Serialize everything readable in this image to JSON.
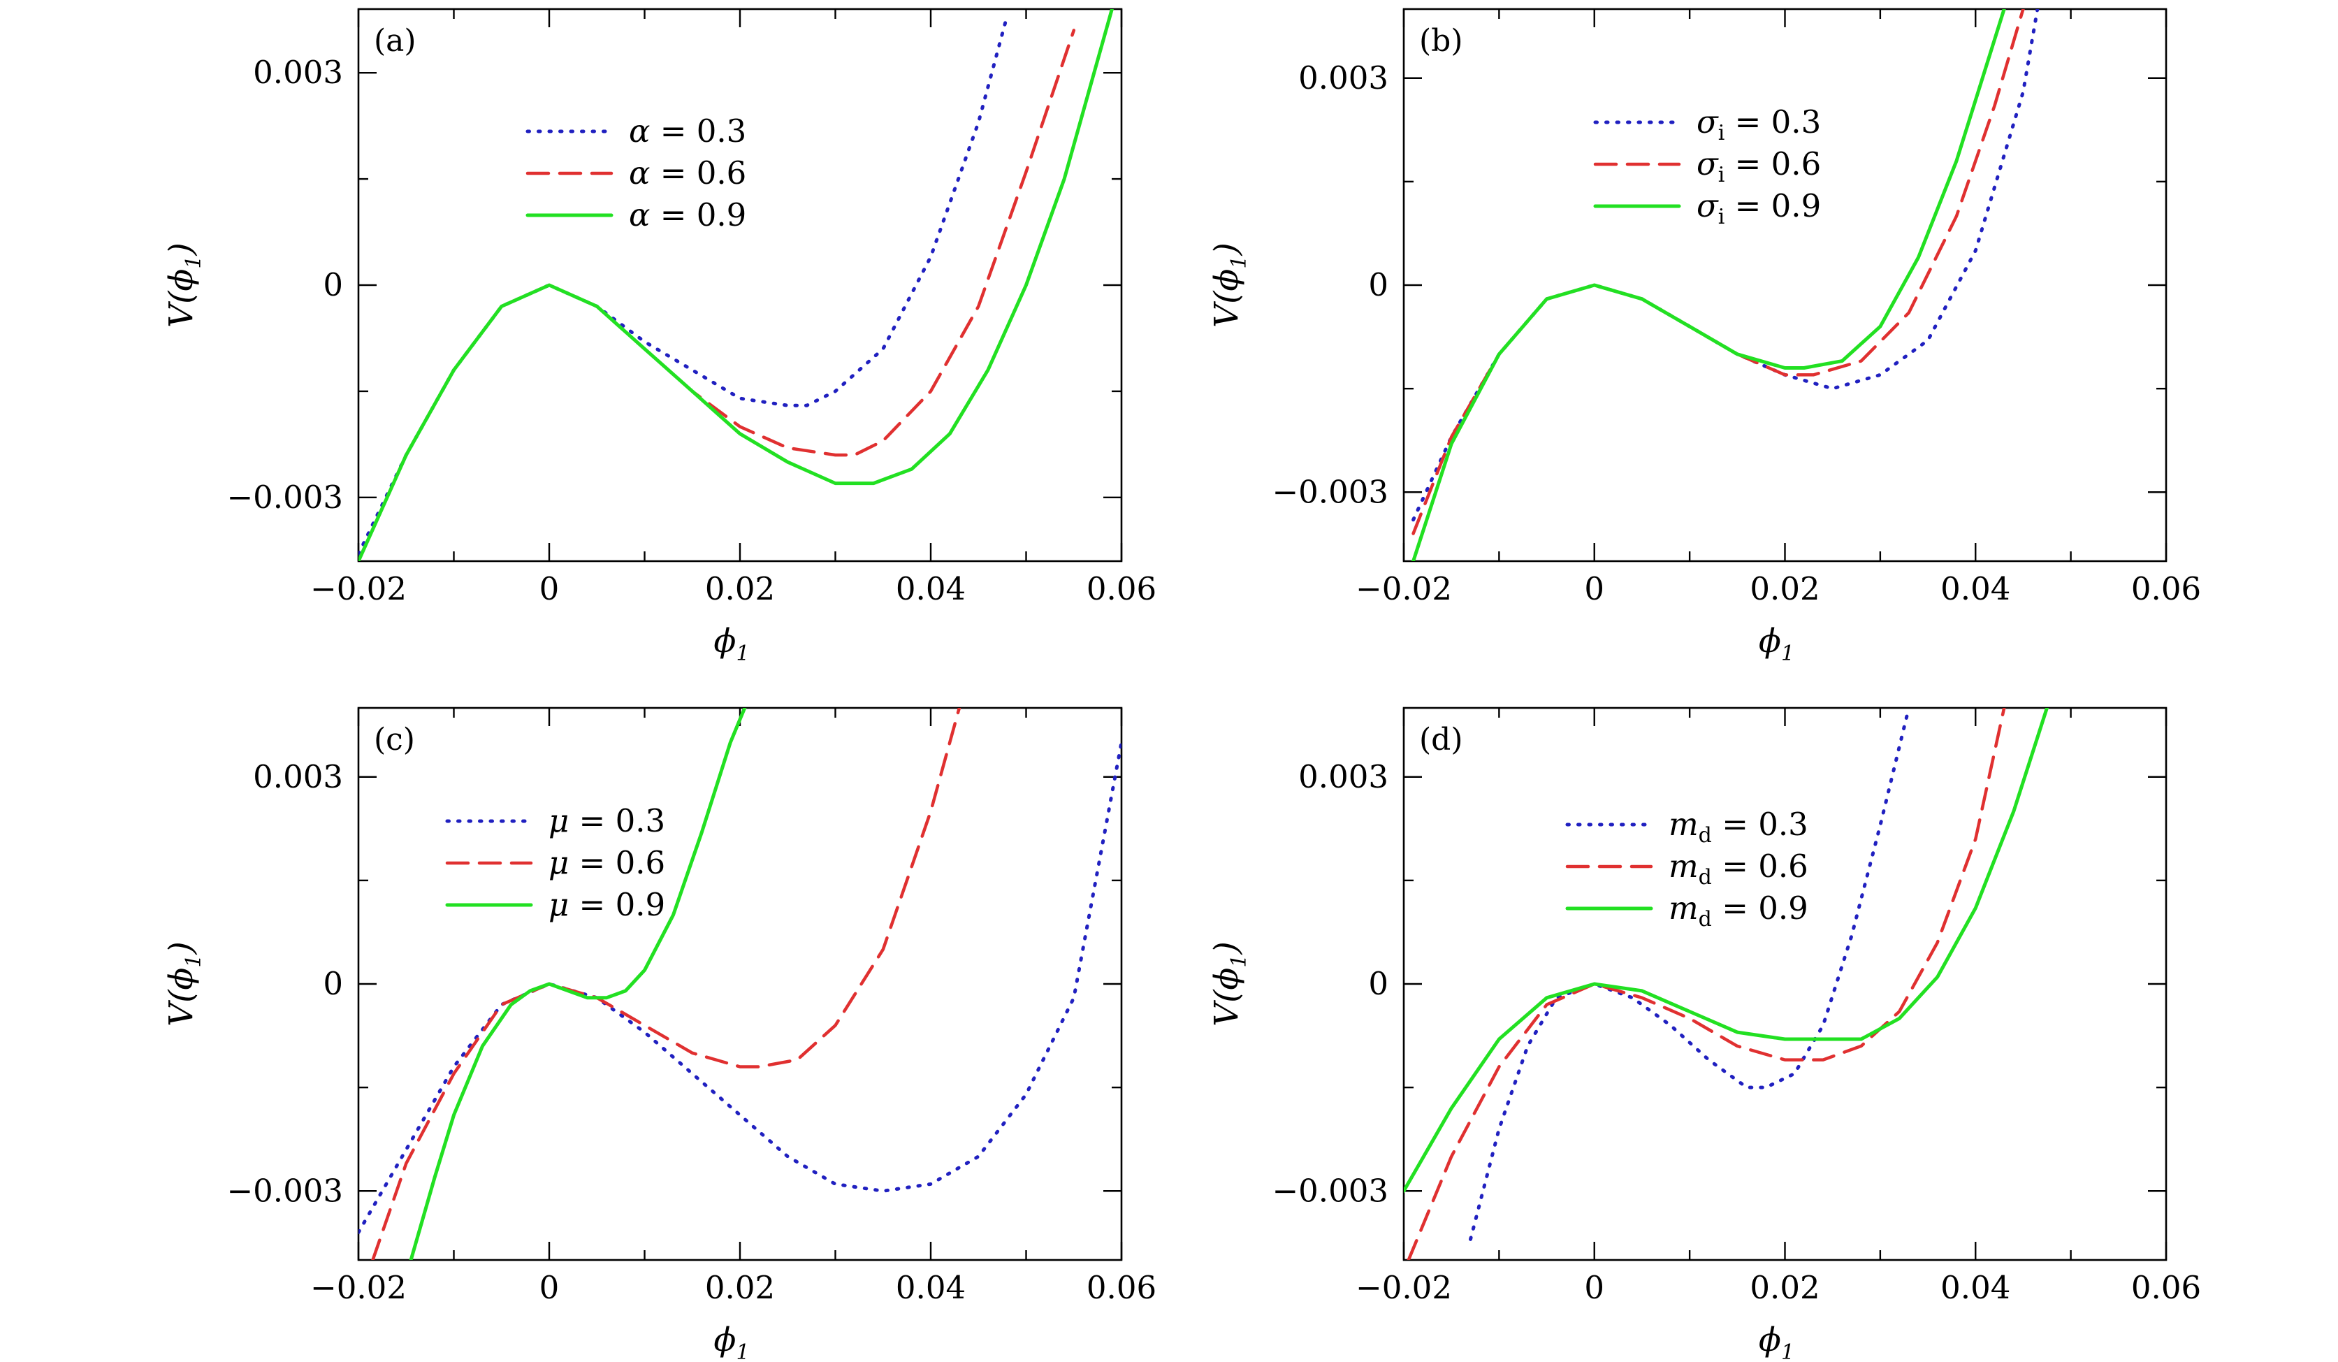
{
  "styles": {
    "dotted": {
      "color": "#2020c0"
    },
    "dashed": {
      "color": "#e03030"
    },
    "solid": {
      "color": "#22e022"
    }
  },
  "chart_data": [
    {
      "type": "line",
      "panel_label": "(a)",
      "xlabel": {
        "main": "ϕ",
        "sub": "1"
      },
      "ylabel": {
        "main": "V(ϕ",
        "sub": "1",
        "close": ")"
      },
      "xlim": [
        -0.02,
        0.06
      ],
      "ylim": [
        -0.0039,
        0.0039
      ],
      "xticks": [
        -0.02,
        0,
        0.02,
        0.04,
        0.06
      ],
      "xtick_labels": [
        "−0.02",
        "0",
        "0.02",
        "0.04",
        "0.06"
      ],
      "yticks": [
        -0.003,
        0,
        0.003
      ],
      "ytick_labels": [
        "−0.003",
        "0",
        "0.003"
      ],
      "legend_position": "upper-left",
      "series": [
        {
          "param": "α",
          "param_sub": "",
          "value_text": " = 0.3",
          "style": "dotted",
          "x": [
            -0.02,
            -0.015,
            -0.01,
            -0.005,
            0,
            0.005,
            0.01,
            0.015,
            0.02,
            0.025,
            0.027,
            0.03,
            0.035,
            0.04,
            0.045,
            0.048
          ],
          "y": [
            -0.0038,
            -0.0024,
            -0.0012,
            -0.0003,
            0,
            -0.0003,
            -0.0008,
            -0.0012,
            -0.0016,
            -0.0017,
            -0.0017,
            -0.0015,
            -0.0009,
            0.0004,
            0.0023,
            0.0038
          ]
        },
        {
          "param": "α",
          "param_sub": "",
          "value_text": " = 0.6",
          "style": "dashed",
          "x": [
            -0.02,
            -0.015,
            -0.01,
            -0.005,
            0,
            0.005,
            0.01,
            0.015,
            0.02,
            0.025,
            0.03,
            0.032,
            0.035,
            0.04,
            0.045,
            0.05,
            0.055
          ],
          "y": [
            -0.0039,
            -0.0024,
            -0.0012,
            -0.0003,
            0,
            -0.0003,
            -0.0009,
            -0.0015,
            -0.002,
            -0.0023,
            -0.0024,
            -0.0024,
            -0.0022,
            -0.0015,
            -0.0003,
            0.0016,
            0.0036
          ]
        },
        {
          "param": "α",
          "param_sub": "",
          "value_text": " = 0.9",
          "style": "solid",
          "x": [
            -0.02,
            -0.015,
            -0.01,
            -0.005,
            0,
            0.005,
            0.01,
            0.015,
            0.02,
            0.025,
            0.03,
            0.034,
            0.038,
            0.042,
            0.046,
            0.05,
            0.054,
            0.059
          ],
          "y": [
            -0.0039,
            -0.0024,
            -0.0012,
            -0.0003,
            0,
            -0.0003,
            -0.0009,
            -0.0015,
            -0.0021,
            -0.0025,
            -0.0028,
            -0.0028,
            -0.0026,
            -0.0021,
            -0.0012,
            0.0,
            0.0015,
            0.0039
          ]
        }
      ]
    },
    {
      "type": "line",
      "panel_label": "(b)",
      "xlabel": {
        "main": "ϕ",
        "sub": "1"
      },
      "ylabel": {
        "main": "V(ϕ",
        "sub": "1",
        "close": ")"
      },
      "xlim": [
        -0.02,
        0.06
      ],
      "ylim": [
        -0.004,
        0.004
      ],
      "xticks": [
        -0.02,
        0,
        0.02,
        0.04,
        0.06
      ],
      "xtick_labels": [
        "−0.02",
        "0",
        "0.02",
        "0.04",
        "0.06"
      ],
      "yticks": [
        -0.003,
        0,
        0.003
      ],
      "ytick_labels": [
        "−0.003",
        "0",
        "0.003"
      ],
      "legend_position": "upper-center",
      "series": [
        {
          "param": "σ",
          "param_sub": "i",
          "value_text": " = 0.3",
          "style": "dotted",
          "x": [
            -0.019,
            -0.015,
            -0.01,
            -0.005,
            0,
            0.005,
            0.01,
            0.015,
            0.02,
            0.025,
            0.03,
            0.035,
            0.04,
            0.045,
            0.0465
          ],
          "y": [
            -0.0034,
            -0.0022,
            -0.001,
            -0.0002,
            0,
            -0.0002,
            -0.0006,
            -0.001,
            -0.0013,
            -0.0015,
            -0.0013,
            -0.0008,
            0.0005,
            0.0028,
            0.004
          ]
        },
        {
          "param": "σ",
          "param_sub": "i",
          "value_text": " = 0.6",
          "style": "dashed",
          "x": [
            -0.019,
            -0.015,
            -0.01,
            -0.005,
            0,
            0.005,
            0.01,
            0.015,
            0.02,
            0.023,
            0.028,
            0.033,
            0.038,
            0.042,
            0.045
          ],
          "y": [
            -0.0036,
            -0.0022,
            -0.001,
            -0.0002,
            0,
            -0.0002,
            -0.0006,
            -0.001,
            -0.0013,
            -0.0013,
            -0.0011,
            -0.0004,
            0.001,
            0.0026,
            0.004
          ]
        },
        {
          "param": "σ",
          "param_sub": "i",
          "value_text": " = 0.9",
          "style": "solid",
          "x": [
            -0.019,
            -0.015,
            -0.01,
            -0.005,
            0,
            0.005,
            0.01,
            0.015,
            0.02,
            0.022,
            0.026,
            0.03,
            0.034,
            0.038,
            0.043
          ],
          "y": [
            -0.004,
            -0.0023,
            -0.001,
            -0.0002,
            0,
            -0.0002,
            -0.0006,
            -0.001,
            -0.0012,
            -0.0012,
            -0.0011,
            -0.0006,
            0.0004,
            0.0018,
            0.004
          ]
        }
      ]
    },
    {
      "type": "line",
      "panel_label": "(c)",
      "xlabel": {
        "main": "ϕ",
        "sub": "1"
      },
      "ylabel": {
        "main": "V(ϕ",
        "sub": "1",
        "close": ")"
      },
      "xlim": [
        -0.02,
        0.06
      ],
      "ylim": [
        -0.004,
        0.004
      ],
      "xticks": [
        -0.02,
        0,
        0.02,
        0.04,
        0.06
      ],
      "xtick_labels": [
        "−0.02",
        "0",
        "0.02",
        "0.04",
        "0.06"
      ],
      "yticks": [
        -0.003,
        0,
        0.003
      ],
      "ytick_labels": [
        "−0.003",
        "0",
        "0.003"
      ],
      "legend_position": "upper-left",
      "series": [
        {
          "param": "μ",
          "param_sub": "",
          "value_text": " = 0.3",
          "style": "dotted",
          "x": [
            -0.02,
            -0.015,
            -0.01,
            -0.005,
            0,
            0.005,
            0.01,
            0.015,
            0.02,
            0.025,
            0.03,
            0.035,
            0.04,
            0.045,
            0.05,
            0.055,
            0.06
          ],
          "y": [
            -0.0036,
            -0.0024,
            -0.0012,
            -0.0003,
            0,
            -0.0002,
            -0.0007,
            -0.0013,
            -0.0019,
            -0.0025,
            -0.0029,
            -0.003,
            -0.0029,
            -0.0025,
            -0.0016,
            -0.0002,
            0.0035
          ]
        },
        {
          "param": "μ",
          "param_sub": "",
          "value_text": " = 0.6",
          "style": "dashed",
          "x": [
            -0.0185,
            -0.015,
            -0.01,
            -0.005,
            0,
            0.005,
            0.01,
            0.015,
            0.02,
            0.022,
            0.026,
            0.03,
            0.035,
            0.04,
            0.043
          ],
          "y": [
            -0.004,
            -0.0026,
            -0.0013,
            -0.0003,
            0,
            -0.0002,
            -0.0006,
            -0.001,
            -0.0012,
            -0.0012,
            -0.0011,
            -0.0006,
            0.0005,
            0.0025,
            0.004
          ]
        },
        {
          "param": "μ",
          "param_sub": "",
          "value_text": " = 0.9",
          "style": "solid",
          "x": [
            -0.0145,
            -0.012,
            -0.01,
            -0.007,
            -0.004,
            -0.002,
            0,
            0.002,
            0.004,
            0.006,
            0.008,
            0.01,
            0.013,
            0.016,
            0.019,
            0.0205
          ],
          "y": [
            -0.004,
            -0.0028,
            -0.0019,
            -0.0009,
            -0.0003,
            -0.0001,
            0,
            -0.0001,
            -0.0002,
            -0.0002,
            -0.0001,
            0.0002,
            0.001,
            0.0022,
            0.0035,
            0.004
          ]
        }
      ]
    },
    {
      "type": "line",
      "panel_label": "(d)",
      "xlabel": {
        "main": "ϕ",
        "sub": "1"
      },
      "ylabel": {
        "main": "V(ϕ",
        "sub": "1",
        "close": ")"
      },
      "xlim": [
        -0.02,
        0.06
      ],
      "ylim": [
        -0.004,
        0.004
      ],
      "xticks": [
        -0.02,
        0,
        0.02,
        0.04,
        0.06
      ],
      "xtick_labels": [
        "−0.02",
        "0",
        "0.02",
        "0.04",
        "0.06"
      ],
      "yticks": [
        -0.003,
        0,
        0.003
      ],
      "ytick_labels": [
        "−0.003",
        "0",
        "0.003"
      ],
      "legend_position": "upper-center",
      "series": [
        {
          "param": "m",
          "param_sub": "d",
          "value_text": " = 0.3",
          "style": "dotted",
          "x": [
            -0.013,
            -0.01,
            -0.007,
            -0.004,
            0,
            0.004,
            0.008,
            0.012,
            0.016,
            0.018,
            0.021,
            0.024,
            0.027,
            0.03,
            0.033
          ],
          "y": [
            -0.0037,
            -0.0021,
            -0.0009,
            -0.0002,
            0,
            -0.0002,
            -0.0006,
            -0.0011,
            -0.0015,
            -0.0015,
            -0.0013,
            -0.0006,
            0.0007,
            0.0023,
            0.004
          ]
        },
        {
          "param": "m",
          "param_sub": "d",
          "value_text": " = 0.6",
          "style": "dashed",
          "x": [
            -0.0195,
            -0.015,
            -0.01,
            -0.005,
            0,
            0.005,
            0.01,
            0.015,
            0.02,
            0.024,
            0.028,
            0.032,
            0.036,
            0.04,
            0.043
          ],
          "y": [
            -0.004,
            -0.0025,
            -0.0012,
            -0.0003,
            0,
            -0.0002,
            -0.0005,
            -0.0009,
            -0.0011,
            -0.0011,
            -0.0009,
            -0.0004,
            0.0006,
            0.0021,
            0.004
          ]
        },
        {
          "param": "m",
          "param_sub": "d",
          "value_text": " = 0.9",
          "style": "solid",
          "x": [
            -0.02,
            -0.015,
            -0.01,
            -0.005,
            0,
            0.005,
            0.01,
            0.015,
            0.02,
            0.024,
            0.028,
            0.032,
            0.036,
            0.04,
            0.044,
            0.0475
          ],
          "y": [
            -0.003,
            -0.0018,
            -0.0008,
            -0.0002,
            0,
            -0.0001,
            -0.0004,
            -0.0007,
            -0.0008,
            -0.0008,
            -0.0008,
            -0.0005,
            0.0001,
            0.0011,
            0.0025,
            0.004
          ]
        }
      ]
    }
  ]
}
